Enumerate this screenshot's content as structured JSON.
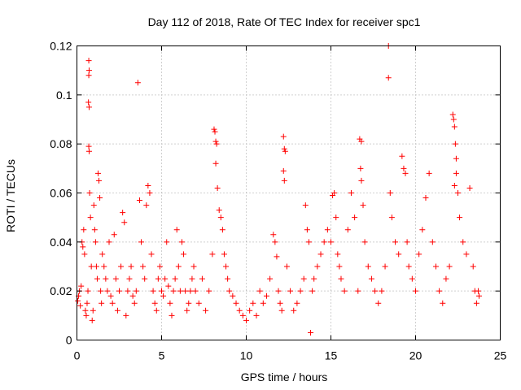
{
  "chart_data": {
    "type": "scatter",
    "title": "Day 112 of 2018, Rate Of TEC Index for receiver spc1",
    "xlabel": "GPS time / hours",
    "ylabel": "ROTI / TECUs",
    "xlim": [
      0,
      25
    ],
    "ylim": [
      0,
      0.12
    ],
    "x_ticks": [
      0,
      5,
      10,
      15,
      20,
      25
    ],
    "y_ticks": [
      0,
      0.02,
      0.04,
      0.06,
      0.08,
      0.1,
      0.12
    ],
    "x_tick_labels": [
      "0",
      "5",
      "10",
      "15",
      "20",
      "25"
    ],
    "y_tick_labels": [
      "0",
      "0.02",
      "0.04",
      "0.06",
      "0.08",
      "0.1",
      "0.12"
    ],
    "grid": true,
    "marker": "+",
    "color": "#ff0000",
    "series": [
      {
        "name": "ROTI",
        "points": [
          [
            0.05,
            0.016
          ],
          [
            0.1,
            0.018
          ],
          [
            0.15,
            0.02
          ],
          [
            0.2,
            0.014
          ],
          [
            0.25,
            0.022
          ],
          [
            0.3,
            0.04
          ],
          [
            0.35,
            0.038
          ],
          [
            0.4,
            0.045
          ],
          [
            0.45,
            0.035
          ],
          [
            0.5,
            0.012
          ],
          [
            0.55,
            0.01
          ],
          [
            0.6,
            0.015
          ],
          [
            0.65,
            0.02
          ],
          [
            0.7,
            0.114
          ],
          [
            0.72,
            0.11
          ],
          [
            0.7,
            0.108
          ],
          [
            0.68,
            0.097
          ],
          [
            0.72,
            0.095
          ],
          [
            0.7,
            0.079
          ],
          [
            0.72,
            0.077
          ],
          [
            0.75,
            0.06
          ],
          [
            0.8,
            0.05
          ],
          [
            0.85,
            0.03
          ],
          [
            0.9,
            0.008
          ],
          [
            0.95,
            0.012
          ],
          [
            1.0,
            0.055
          ],
          [
            1.05,
            0.045
          ],
          [
            1.1,
            0.04
          ],
          [
            1.15,
            0.03
          ],
          [
            1.2,
            0.025
          ],
          [
            1.25,
            0.068
          ],
          [
            1.3,
            0.065
          ],
          [
            1.35,
            0.058
          ],
          [
            1.4,
            0.02
          ],
          [
            1.45,
            0.015
          ],
          [
            1.5,
            0.035
          ],
          [
            1.6,
            0.03
          ],
          [
            1.7,
            0.025
          ],
          [
            1.8,
            0.02
          ],
          [
            1.9,
            0.04
          ],
          [
            2.0,
            0.018
          ],
          [
            2.1,
            0.015
          ],
          [
            2.2,
            0.043
          ],
          [
            2.3,
            0.025
          ],
          [
            2.4,
            0.012
          ],
          [
            2.5,
            0.02
          ],
          [
            2.6,
            0.03
          ],
          [
            2.7,
            0.052
          ],
          [
            2.8,
            0.048
          ],
          [
            2.9,
            0.01
          ],
          [
            3.0,
            0.02
          ],
          [
            3.1,
            0.025
          ],
          [
            3.2,
            0.03
          ],
          [
            3.3,
            0.018
          ],
          [
            3.4,
            0.015
          ],
          [
            3.5,
            0.02
          ],
          [
            3.6,
            0.105
          ],
          [
            3.7,
            0.057
          ],
          [
            3.8,
            0.04
          ],
          [
            3.9,
            0.03
          ],
          [
            4.0,
            0.025
          ],
          [
            4.1,
            0.055
          ],
          [
            4.2,
            0.063
          ],
          [
            4.3,
            0.06
          ],
          [
            4.4,
            0.035
          ],
          [
            4.5,
            0.02
          ],
          [
            4.6,
            0.015
          ],
          [
            4.7,
            0.012
          ],
          [
            4.8,
            0.025
          ],
          [
            4.9,
            0.03
          ],
          [
            5.0,
            0.02
          ],
          [
            5.1,
            0.018
          ],
          [
            5.2,
            0.025
          ],
          [
            5.3,
            0.04
          ],
          [
            5.4,
            0.022
          ],
          [
            5.5,
            0.015
          ],
          [
            5.6,
            0.01
          ],
          [
            5.7,
            0.02
          ],
          [
            5.8,
            0.025
          ],
          [
            5.9,
            0.045
          ],
          [
            6.0,
            0.03
          ],
          [
            6.1,
            0.02
          ],
          [
            6.2,
            0.04
          ],
          [
            6.3,
            0.035
          ],
          [
            6.4,
            0.02
          ],
          [
            6.5,
            0.012
          ],
          [
            6.6,
            0.015
          ],
          [
            6.7,
            0.02
          ],
          [
            6.8,
            0.025
          ],
          [
            6.9,
            0.03
          ],
          [
            7.0,
            0.02
          ],
          [
            7.2,
            0.015
          ],
          [
            7.4,
            0.025
          ],
          [
            7.6,
            0.012
          ],
          [
            7.8,
            0.02
          ],
          [
            8.0,
            0.035
          ],
          [
            8.1,
            0.086
          ],
          [
            8.15,
            0.085
          ],
          [
            8.2,
            0.081
          ],
          [
            8.25,
            0.08
          ],
          [
            8.2,
            0.072
          ],
          [
            8.3,
            0.062
          ],
          [
            8.4,
            0.053
          ],
          [
            8.5,
            0.05
          ],
          [
            8.6,
            0.045
          ],
          [
            8.7,
            0.035
          ],
          [
            8.8,
            0.03
          ],
          [
            8.9,
            0.025
          ],
          [
            9.0,
            0.02
          ],
          [
            9.2,
            0.018
          ],
          [
            9.4,
            0.015
          ],
          [
            9.6,
            0.012
          ],
          [
            9.8,
            0.01
          ],
          [
            10.0,
            0.008
          ],
          [
            10.2,
            0.012
          ],
          [
            10.4,
            0.015
          ],
          [
            10.6,
            0.01
          ],
          [
            10.8,
            0.02
          ],
          [
            11.0,
            0.015
          ],
          [
            11.2,
            0.018
          ],
          [
            11.4,
            0.025
          ],
          [
            11.6,
            0.043
          ],
          [
            11.7,
            0.04
          ],
          [
            11.8,
            0.034
          ],
          [
            11.9,
            0.02
          ],
          [
            12.0,
            0.015
          ],
          [
            12.1,
            0.012
          ],
          [
            12.2,
            0.083
          ],
          [
            12.25,
            0.078
          ],
          [
            12.3,
            0.077
          ],
          [
            12.2,
            0.069
          ],
          [
            12.25,
            0.065
          ],
          [
            12.4,
            0.03
          ],
          [
            12.6,
            0.02
          ],
          [
            12.8,
            0.012
          ],
          [
            13.0,
            0.015
          ],
          [
            13.2,
            0.02
          ],
          [
            13.4,
            0.025
          ],
          [
            13.5,
            0.055
          ],
          [
            13.6,
            0.045
          ],
          [
            13.7,
            0.04
          ],
          [
            13.8,
            0.003
          ],
          [
            13.9,
            0.02
          ],
          [
            14.0,
            0.025
          ],
          [
            14.2,
            0.03
          ],
          [
            14.4,
            0.035
          ],
          [
            14.6,
            0.04
          ],
          [
            14.8,
            0.045
          ],
          [
            15.0,
            0.04
          ],
          [
            15.1,
            0.059
          ],
          [
            15.2,
            0.06
          ],
          [
            15.3,
            0.05
          ],
          [
            15.4,
            0.035
          ],
          [
            15.5,
            0.03
          ],
          [
            15.6,
            0.025
          ],
          [
            15.8,
            0.02
          ],
          [
            16.0,
            0.045
          ],
          [
            16.2,
            0.06
          ],
          [
            16.4,
            0.05
          ],
          [
            16.6,
            0.02
          ],
          [
            16.7,
            0.082
          ],
          [
            16.8,
            0.081
          ],
          [
            16.75,
            0.07
          ],
          [
            16.8,
            0.065
          ],
          [
            16.9,
            0.055
          ],
          [
            17.0,
            0.04
          ],
          [
            17.2,
            0.03
          ],
          [
            17.4,
            0.025
          ],
          [
            17.6,
            0.02
          ],
          [
            17.8,
            0.015
          ],
          [
            18.0,
            0.02
          ],
          [
            18.2,
            0.03
          ],
          [
            18.4,
            0.12
          ],
          [
            18.4,
            0.107
          ],
          [
            18.5,
            0.06
          ],
          [
            18.6,
            0.05
          ],
          [
            18.8,
            0.04
          ],
          [
            19.0,
            0.035
          ],
          [
            19.2,
            0.075
          ],
          [
            19.3,
            0.07
          ],
          [
            19.4,
            0.068
          ],
          [
            19.5,
            0.04
          ],
          [
            19.6,
            0.03
          ],
          [
            19.8,
            0.025
          ],
          [
            20.0,
            0.02
          ],
          [
            20.2,
            0.035
          ],
          [
            20.4,
            0.045
          ],
          [
            20.6,
            0.058
          ],
          [
            20.8,
            0.068
          ],
          [
            21.0,
            0.04
          ],
          [
            21.2,
            0.03
          ],
          [
            21.4,
            0.02
          ],
          [
            21.6,
            0.015
          ],
          [
            21.8,
            0.025
          ],
          [
            22.0,
            0.03
          ],
          [
            22.2,
            0.092
          ],
          [
            22.25,
            0.09
          ],
          [
            22.3,
            0.087
          ],
          [
            22.35,
            0.08
          ],
          [
            22.4,
            0.074
          ],
          [
            22.4,
            0.068
          ],
          [
            22.3,
            0.063
          ],
          [
            22.5,
            0.06
          ],
          [
            22.6,
            0.05
          ],
          [
            22.8,
            0.04
          ],
          [
            23.0,
            0.035
          ],
          [
            23.2,
            0.062
          ],
          [
            23.4,
            0.03
          ],
          [
            23.5,
            0.02
          ],
          [
            23.6,
            0.015
          ],
          [
            23.7,
            0.02
          ],
          [
            23.75,
            0.018
          ]
        ]
      }
    ]
  }
}
